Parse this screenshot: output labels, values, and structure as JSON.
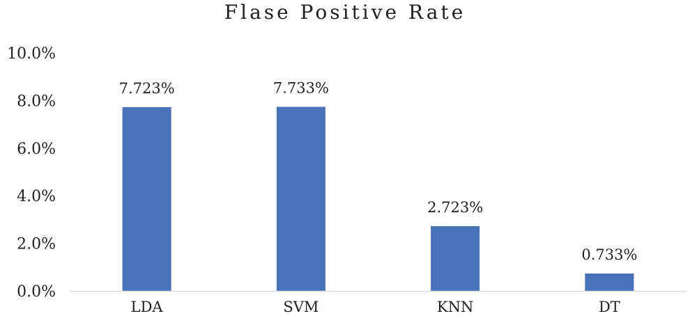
{
  "chart_data": {
    "type": "bar",
    "title": "Flase Positive Rate",
    "categories": [
      "LDA",
      "SVM",
      "KNN",
      "DT"
    ],
    "values": [
      7.723,
      7.733,
      2.723,
      0.733
    ],
    "data_labels": [
      "7.723%",
      "7.733%",
      "2.723%",
      "0.733%"
    ],
    "ylim": [
      0,
      10
    ],
    "yticks": [
      0,
      2,
      4,
      6,
      8,
      10
    ],
    "ytick_labels": [
      "0.0%",
      "2.0%",
      "4.0%",
      "6.0%",
      "8.0%",
      "10.0%"
    ],
    "xlabel": "",
    "ylabel": "",
    "grid": false,
    "bar_color": "#4a72b8",
    "axis_color": "#d9d9d9"
  }
}
